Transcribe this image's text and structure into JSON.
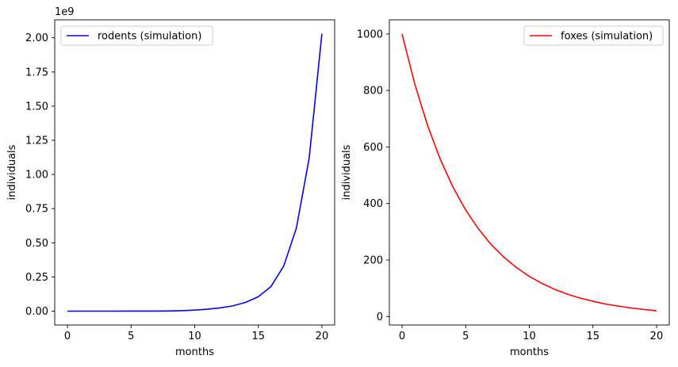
{
  "chart_data": [
    {
      "type": "line",
      "xlabel": "months",
      "ylabel": "individuals",
      "offset_label": "1e9",
      "xlim": [
        -1.0,
        21.0
      ],
      "ylim": [
        -0.1015,
        2.1315
      ],
      "x_ticks": [
        0,
        5,
        10,
        15,
        20
      ],
      "x_tick_labels": [
        "0",
        "5",
        "10",
        "15",
        "20"
      ],
      "y_ticks": [
        0.0,
        0.25,
        0.5,
        0.75,
        1.0,
        1.25,
        1.5,
        1.75,
        2.0
      ],
      "y_tick_labels": [
        "0.00",
        "0.25",
        "0.50",
        "0.75",
        "1.00",
        "1.25",
        "1.50",
        "1.75",
        "2.00"
      ],
      "grid": false,
      "legend_position": "upper left",
      "series": [
        {
          "name": "rodents (simulation)",
          "color": "#0000ff",
          "x": [
            0,
            1,
            2,
            3,
            4,
            5,
            6,
            7,
            8,
            9,
            10,
            11,
            12,
            13,
            14,
            15,
            16,
            17,
            18,
            19,
            20
          ],
          "y": [
            0.0,
            0.0,
            0.0,
            0.0,
            0.0,
            0.0001,
            0.0002,
            0.0005,
            0.0013,
            0.0034,
            0.0075,
            0.0141,
            0.0235,
            0.0385,
            0.0636,
            0.105,
            0.18,
            0.33,
            0.61,
            1.12,
            2.03
          ]
        }
      ]
    },
    {
      "type": "line",
      "xlabel": "months",
      "ylabel": "individuals",
      "xlim": [
        -1.0,
        21.0
      ],
      "ylim": [
        -30.0,
        1050.0
      ],
      "x_ticks": [
        0,
        5,
        10,
        15,
        20
      ],
      "x_tick_labels": [
        "0",
        "5",
        "10",
        "15",
        "20"
      ],
      "y_ticks": [
        0,
        200,
        400,
        600,
        800,
        1000
      ],
      "y_tick_labels": [
        "0",
        "200",
        "400",
        "600",
        "800",
        "1000"
      ],
      "grid": false,
      "legend_position": "upper right",
      "series": [
        {
          "name": "foxes (simulation)",
          "color": "#ff0000",
          "x": [
            0,
            1,
            2,
            3,
            4,
            5,
            6,
            7,
            8,
            9,
            10,
            11,
            12,
            13,
            14,
            15,
            16,
            17,
            18,
            19,
            20
          ],
          "y": [
            1000,
            823,
            677,
            557,
            458,
            377,
            310,
            255,
            210,
            173,
            142,
            117,
            96,
            79,
            65,
            54,
            44,
            37,
            30,
            25,
            20
          ]
        }
      ]
    }
  ]
}
